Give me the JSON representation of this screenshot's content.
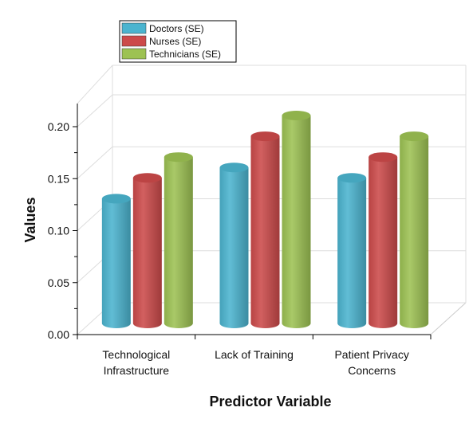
{
  "chart_data": {
    "type": "bar",
    "categories": [
      "Technological Infrastructure",
      "Lack of Training",
      "Patient Privacy Concerns"
    ],
    "category_lines": [
      [
        "Technological",
        "Infrastructure"
      ],
      [
        "Lack of Training"
      ],
      [
        "Patient Privacy",
        "Concerns"
      ]
    ],
    "series": [
      {
        "name": "Doctors (SE)",
        "values": [
          0.12,
          0.15,
          0.14
        ],
        "color": "#4bb4cf"
      },
      {
        "name": "Nurses (SE)",
        "values": [
          0.14,
          0.18,
          0.16
        ],
        "color": "#cc4a4a"
      },
      {
        "name": "Technicians (SE)",
        "values": [
          0.16,
          0.2,
          0.18
        ],
        "color": "#9dc253"
      }
    ],
    "xlabel": "Predictor Variable",
    "ylabel": "Values",
    "ylim": [
      0,
      0.2
    ],
    "yticks": [
      "0.00",
      "0.05",
      "0.10",
      "0.15",
      "0.20"
    ],
    "grid": true,
    "legend_position": "top-left",
    "style": "3d-cylinder"
  }
}
